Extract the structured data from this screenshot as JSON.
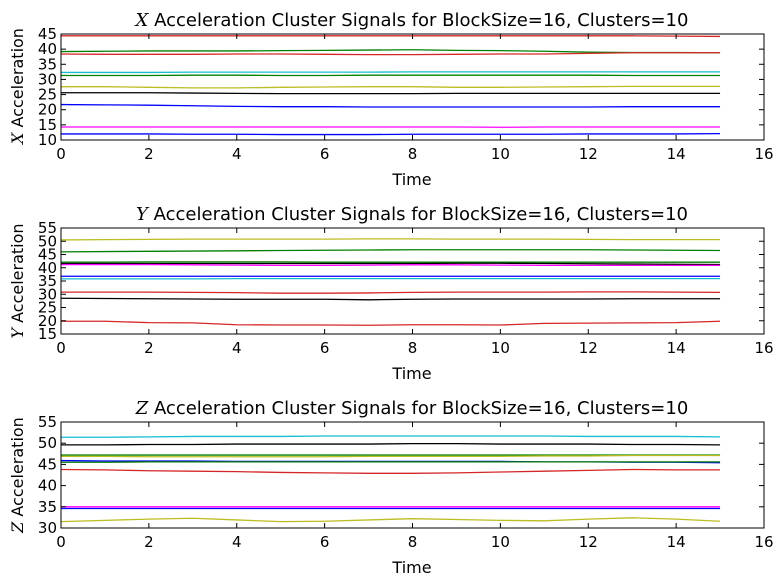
{
  "chart_data": [
    {
      "type": "line",
      "title_symbol": "X",
      "title_text": "Acceleration Cluster Signals for BlockSize=16, Clusters=10",
      "xlabel": "Time",
      "ylabel_symbol": "X",
      "ylabel_text": "Acceleration",
      "xlim": [
        0,
        16
      ],
      "ylim": [
        10,
        45
      ],
      "xticks": [
        "0",
        "2",
        "4",
        "6",
        "8",
        "10",
        "12",
        "14",
        "16"
      ],
      "yticks": [
        "10",
        "15",
        "20",
        "25",
        "30",
        "35",
        "40",
        "45"
      ],
      "x": [
        0,
        1,
        2,
        3,
        4,
        5,
        6,
        7,
        8,
        9,
        10,
        11,
        12,
        13,
        14,
        15
      ],
      "series": [
        {
          "color": "#d62728",
          "values": [
            44.4,
            44.4,
            44.4,
            44.4,
            44.4,
            44.4,
            44.4,
            44.4,
            44.4,
            44.4,
            44.4,
            44.4,
            44.4,
            44.4,
            44.3,
            44.2
          ]
        },
        {
          "color": "#008000",
          "values": [
            39.2,
            39.3,
            39.4,
            39.4,
            39.4,
            39.5,
            39.6,
            39.7,
            39.8,
            39.6,
            39.5,
            39.3,
            39.0,
            38.9,
            38.9,
            38.8
          ]
        },
        {
          "color": "#d62728",
          "values": [
            38.4,
            38.3,
            38.3,
            38.3,
            38.4,
            38.4,
            38.3,
            38.2,
            38.2,
            38.3,
            38.4,
            38.4,
            38.6,
            38.8,
            38.8,
            38.8
          ]
        },
        {
          "color": "#17becf",
          "values": [
            32.3,
            32.3,
            32.3,
            32.4,
            32.4,
            32.4,
            32.4,
            32.4,
            32.5,
            32.5,
            32.5,
            32.5,
            32.5,
            32.5,
            32.5,
            32.5
          ]
        },
        {
          "color": "#008000",
          "values": [
            31.3,
            31.3,
            31.3,
            31.4,
            31.4,
            31.3,
            31.3,
            31.4,
            31.4,
            31.4,
            31.4,
            31.4,
            31.4,
            31.3,
            31.3,
            31.3
          ]
        },
        {
          "color": "#bcbd22",
          "values": [
            27.6,
            27.6,
            27.4,
            27.2,
            27.2,
            27.4,
            27.5,
            27.6,
            27.6,
            27.4,
            27.4,
            27.5,
            27.6,
            27.7,
            27.7,
            27.7
          ]
        },
        {
          "color": "#000000",
          "values": [
            25.6,
            25.6,
            25.6,
            25.5,
            25.4,
            25.3,
            25.3,
            25.3,
            25.3,
            25.4,
            25.4,
            25.4,
            25.4,
            25.4,
            25.4,
            25.4
          ]
        },
        {
          "color": "#0000ff",
          "values": [
            21.7,
            21.6,
            21.5,
            21.3,
            21.1,
            21.0,
            21.0,
            20.9,
            20.9,
            20.9,
            20.9,
            20.9,
            20.9,
            21.0,
            21.0,
            21.0
          ]
        },
        {
          "color": "#ff00ff",
          "values": [
            14.3,
            14.3,
            14.3,
            14.3,
            14.3,
            14.3,
            14.3,
            14.3,
            14.3,
            14.3,
            14.2,
            14.3,
            14.3,
            14.3,
            14.3,
            14.3
          ]
        },
        {
          "color": "#0000ff",
          "values": [
            12.0,
            12.0,
            12.0,
            11.9,
            11.9,
            11.8,
            11.8,
            11.8,
            11.9,
            11.9,
            11.9,
            11.9,
            12.0,
            12.0,
            12.0,
            12.1
          ]
        }
      ]
    },
    {
      "type": "line",
      "title_symbol": "Y",
      "title_text": "Acceleration Cluster Signals for BlockSize=16, Clusters=10",
      "xlabel": "Time",
      "ylabel_symbol": "Y",
      "ylabel_text": "Acceleration",
      "xlim": [
        0,
        16
      ],
      "ylim": [
        15,
        55
      ],
      "xticks": [
        "0",
        "2",
        "4",
        "6",
        "8",
        "10",
        "12",
        "14",
        "16"
      ],
      "yticks": [
        "15",
        "20",
        "25",
        "30",
        "35",
        "40",
        "45",
        "50",
        "55"
      ],
      "x": [
        0,
        1,
        2,
        3,
        4,
        5,
        6,
        7,
        8,
        9,
        10,
        11,
        12,
        13,
        14,
        15
      ],
      "series": [
        {
          "color": "#bcbd22",
          "values": [
            50.5,
            50.6,
            50.7,
            50.8,
            50.8,
            50.8,
            50.8,
            50.9,
            50.9,
            50.8,
            50.8,
            50.8,
            50.7,
            50.6,
            50.6,
            50.6
          ]
        },
        {
          "color": "#008000",
          "values": [
            46.0,
            46.1,
            46.2,
            46.3,
            46.4,
            46.5,
            46.6,
            46.7,
            46.8,
            46.8,
            46.8,
            46.8,
            46.8,
            46.7,
            46.6,
            46.5
          ]
        },
        {
          "color": "#008000",
          "values": [
            42.1,
            42.1,
            42.2,
            42.2,
            42.2,
            42.2,
            42.1,
            42.1,
            42.1,
            42.1,
            42.1,
            42.1,
            42.1,
            42.1,
            42.1,
            42.1
          ]
        },
        {
          "color": "#000000",
          "values": [
            41.6,
            41.6,
            41.6,
            41.6,
            41.6,
            41.6,
            41.6,
            41.6,
            41.6,
            41.7,
            41.7,
            41.6,
            41.5,
            41.4,
            41.3,
            41.2
          ]
        },
        {
          "color": "#ff00ff",
          "values": [
            41.2,
            41.2,
            41.2,
            41.1,
            41.0,
            40.9,
            40.9,
            41.0,
            41.1,
            41.1,
            41.0,
            40.9,
            40.9,
            40.9,
            40.9,
            40.9
          ]
        },
        {
          "color": "#0000ff",
          "values": [
            36.8,
            36.8,
            36.8,
            36.8,
            36.8,
            36.8,
            36.8,
            36.8,
            36.8,
            36.8,
            36.8,
            36.8,
            36.8,
            36.8,
            36.8,
            36.8
          ]
        },
        {
          "color": "#17becf",
          "values": [
            35.8,
            35.8,
            35.8,
            35.8,
            35.9,
            35.9,
            35.9,
            35.9,
            35.9,
            35.9,
            35.9,
            35.9,
            35.9,
            35.9,
            35.9,
            35.9
          ]
        },
        {
          "color": "#d62728",
          "values": [
            30.8,
            30.8,
            30.8,
            30.7,
            30.6,
            30.4,
            30.4,
            30.5,
            30.7,
            30.8,
            30.8,
            30.8,
            30.9,
            30.9,
            30.8,
            30.7
          ]
        },
        {
          "color": "#000000",
          "values": [
            28.5,
            28.4,
            28.3,
            28.2,
            28.1,
            28.1,
            28.1,
            27.9,
            28.1,
            28.2,
            28.2,
            28.2,
            28.2,
            28.3,
            28.3,
            28.3
          ]
        },
        {
          "color": "#d62728",
          "values": [
            19.8,
            19.8,
            19.3,
            19.2,
            18.5,
            18.4,
            18.4,
            18.3,
            18.5,
            18.5,
            18.4,
            19.0,
            19.1,
            19.2,
            19.3,
            19.8
          ]
        }
      ]
    },
    {
      "type": "line",
      "title_symbol": "Z",
      "title_text": "Acceleration Cluster Signals for BlockSize=16, Clusters=10",
      "xlabel": "Time",
      "ylabel_symbol": "Z",
      "ylabel_text": "Acceleration",
      "xlim": [
        0,
        16
      ],
      "ylim": [
        30,
        55
      ],
      "xticks": [
        "0",
        "2",
        "4",
        "6",
        "8",
        "10",
        "12",
        "14",
        "16"
      ],
      "yticks": [
        "30",
        "35",
        "40",
        "45",
        "50",
        "55"
      ],
      "x": [
        0,
        1,
        2,
        3,
        4,
        5,
        6,
        7,
        8,
        9,
        10,
        11,
        12,
        13,
        14,
        15
      ],
      "series": [
        {
          "color": "#17becf",
          "values": [
            51.4,
            51.4,
            51.5,
            51.6,
            51.6,
            51.6,
            51.7,
            51.7,
            51.7,
            51.7,
            51.7,
            51.7,
            51.6,
            51.6,
            51.6,
            51.5
          ]
        },
        {
          "color": "#000000",
          "values": [
            49.6,
            49.6,
            49.7,
            49.7,
            49.8,
            49.8,
            49.8,
            49.8,
            49.9,
            49.9,
            49.8,
            49.8,
            49.8,
            49.7,
            49.7,
            49.6
          ]
        },
        {
          "color": "#008000",
          "values": [
            47.2,
            47.2,
            47.2,
            47.2,
            47.2,
            47.2,
            47.2,
            47.2,
            47.2,
            47.2,
            47.2,
            47.2,
            47.2,
            47.2,
            47.2,
            47.2
          ]
        },
        {
          "color": "#bcbd22",
          "values": [
            46.9,
            46.9,
            46.8,
            46.8,
            46.8,
            46.8,
            46.8,
            46.9,
            46.9,
            46.9,
            46.9,
            47.0,
            47.0,
            47.1,
            47.1,
            47.1
          ]
        },
        {
          "color": "#0000ff",
          "values": [
            45.9,
            45.8,
            45.8,
            45.8,
            45.7,
            45.7,
            45.7,
            45.7,
            45.7,
            45.7,
            45.7,
            45.6,
            45.6,
            45.5,
            45.5,
            45.4
          ]
        },
        {
          "color": "#008000",
          "values": [
            45.5,
            45.5,
            45.6,
            45.6,
            45.6,
            45.6,
            45.6,
            45.6,
            45.6,
            45.6,
            45.6,
            45.6,
            45.6,
            45.6,
            45.6,
            45.6
          ]
        },
        {
          "color": "#d62728",
          "values": [
            43.8,
            43.7,
            43.5,
            43.4,
            43.3,
            43.1,
            43.0,
            42.9,
            42.9,
            43.0,
            43.2,
            43.4,
            43.6,
            43.8,
            43.7,
            43.7
          ]
        },
        {
          "color": "#ff00ff",
          "values": [
            35.0,
            35.0,
            35.0,
            35.0,
            35.0,
            35.0,
            35.0,
            35.0,
            35.0,
            35.0,
            35.0,
            35.0,
            35.0,
            35.0,
            35.0,
            35.0
          ]
        },
        {
          "color": "#0000ff",
          "values": [
            34.6,
            34.6,
            34.6,
            34.6,
            34.6,
            34.6,
            34.6,
            34.6,
            34.6,
            34.6,
            34.6,
            34.6,
            34.6,
            34.6,
            34.6,
            34.6
          ]
        },
        {
          "color": "#bcbd22",
          "values": [
            31.5,
            31.8,
            32.1,
            32.3,
            31.9,
            31.5,
            31.6,
            31.9,
            32.2,
            32.0,
            31.8,
            31.7,
            32.1,
            32.4,
            32.1,
            31.6
          ]
        }
      ]
    }
  ]
}
